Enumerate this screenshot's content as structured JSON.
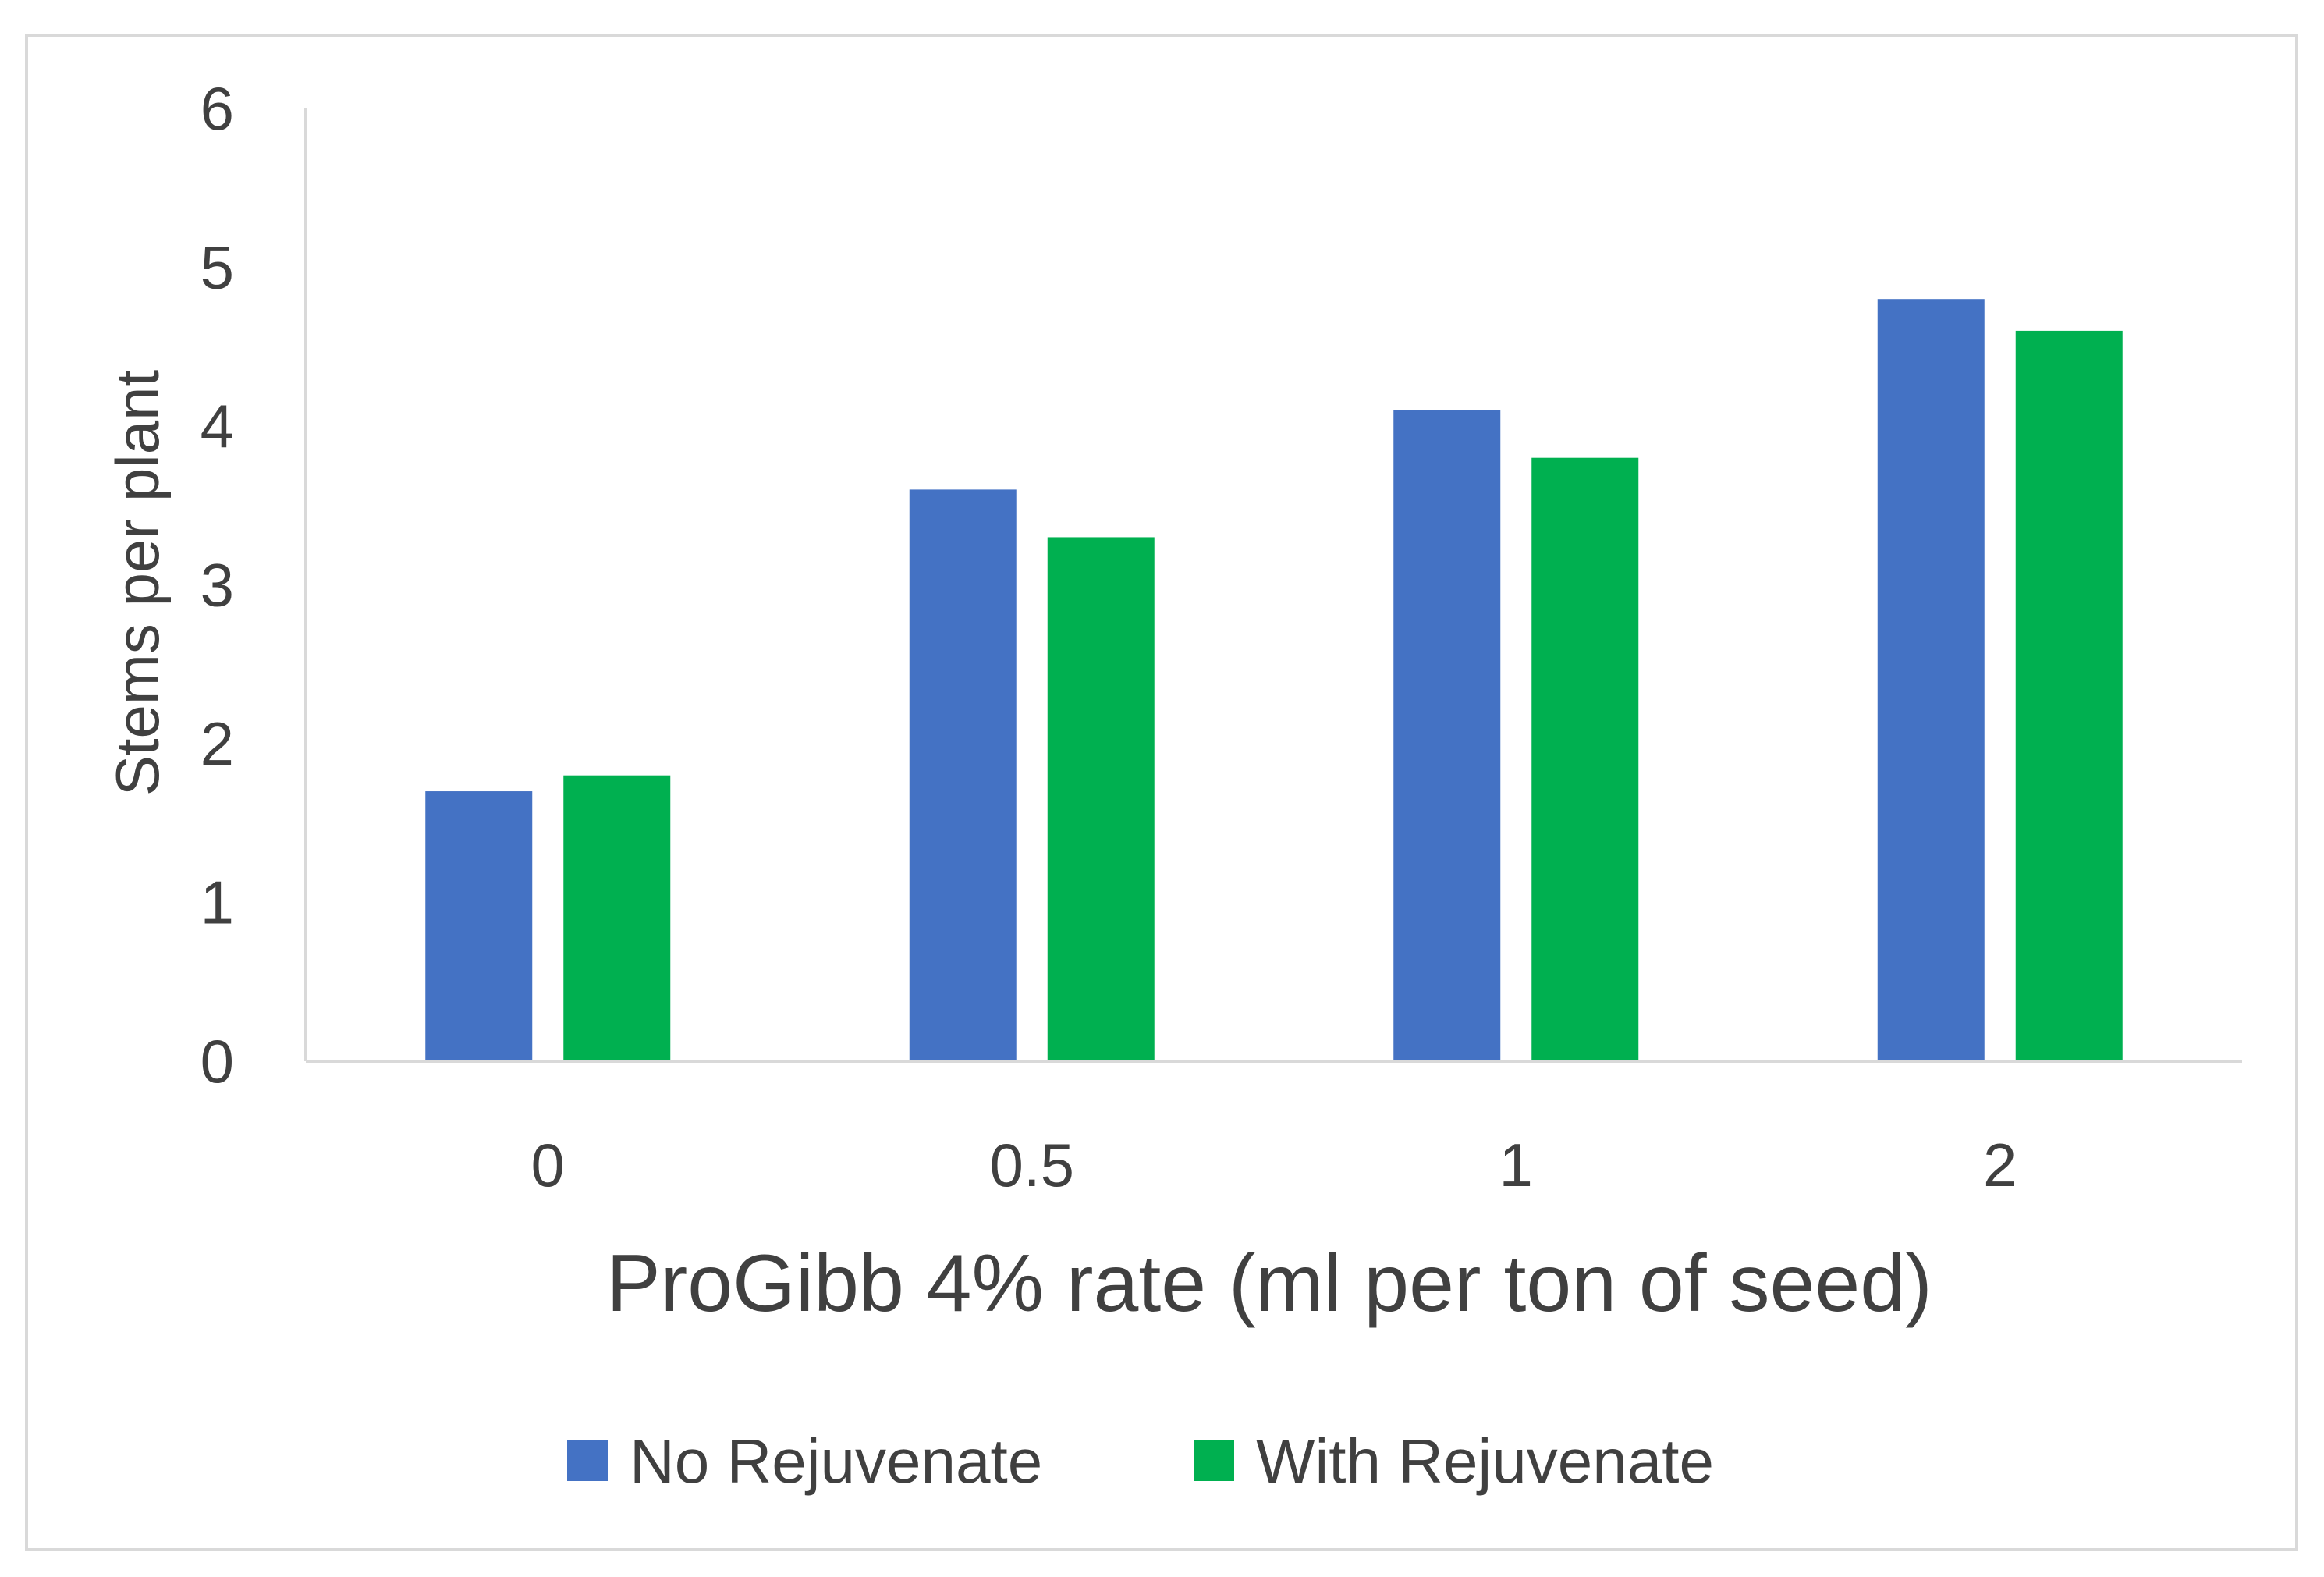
{
  "chart_data": {
    "type": "bar",
    "title": "",
    "xlabel": "ProGibb 4% rate (ml per ton of seed)",
    "ylabel": "Stems per plant",
    "categories": [
      "0",
      "0.5",
      "1",
      "2"
    ],
    "series": [
      {
        "name": "No Rejuvenate",
        "color": "#4472C4",
        "values": [
          1.7,
          3.6,
          4.1,
          4.8
        ]
      },
      {
        "name": "With Rejuvenate",
        "color": "#00B050",
        "values": [
          1.8,
          3.3,
          3.8,
          4.6
        ]
      }
    ],
    "ylim": [
      0,
      6
    ],
    "yticks": [
      "0",
      "1",
      "2",
      "3",
      "4",
      "5",
      "6"
    ],
    "grid": false,
    "legend_position": "bottom"
  }
}
